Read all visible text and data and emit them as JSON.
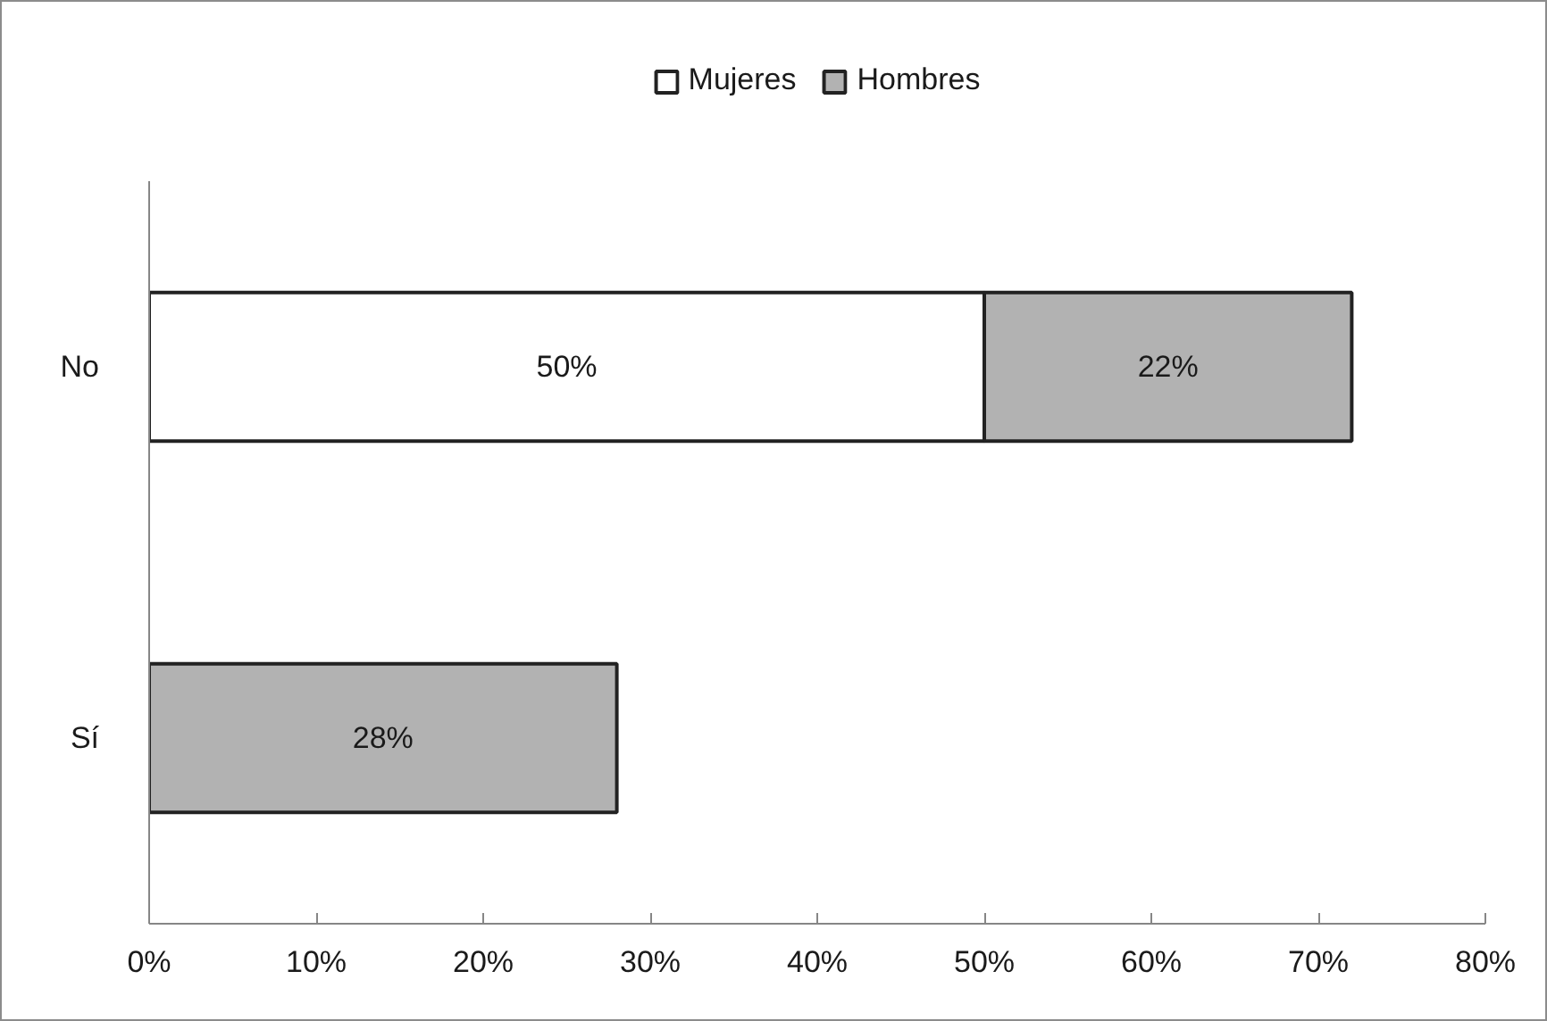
{
  "chart_data": {
    "type": "bar",
    "orientation": "horizontal",
    "stacked": true,
    "categories": [
      "No",
      "Sí"
    ],
    "series": [
      {
        "name": "Mujeres",
        "color": "#ffffff",
        "values": [
          50,
          null
        ],
        "value_labels": [
          "50%",
          null
        ]
      },
      {
        "name": "Hombres",
        "color": "#b2b2b2",
        "values": [
          22,
          28
        ],
        "value_labels": [
          "22%",
          "28%"
        ]
      }
    ],
    "xlim": [
      0,
      80
    ],
    "xticks": [
      {
        "value": 0,
        "label": "0%"
      },
      {
        "value": 10,
        "label": "10%"
      },
      {
        "value": 20,
        "label": "20%"
      },
      {
        "value": 30,
        "label": "30%"
      },
      {
        "value": 40,
        "label": "40%"
      },
      {
        "value": 50,
        "label": "50%"
      },
      {
        "value": 60,
        "label": "60%"
      },
      {
        "value": 70,
        "label": "70%"
      },
      {
        "value": 80,
        "label": "80%"
      }
    ],
    "legend": "top"
  }
}
